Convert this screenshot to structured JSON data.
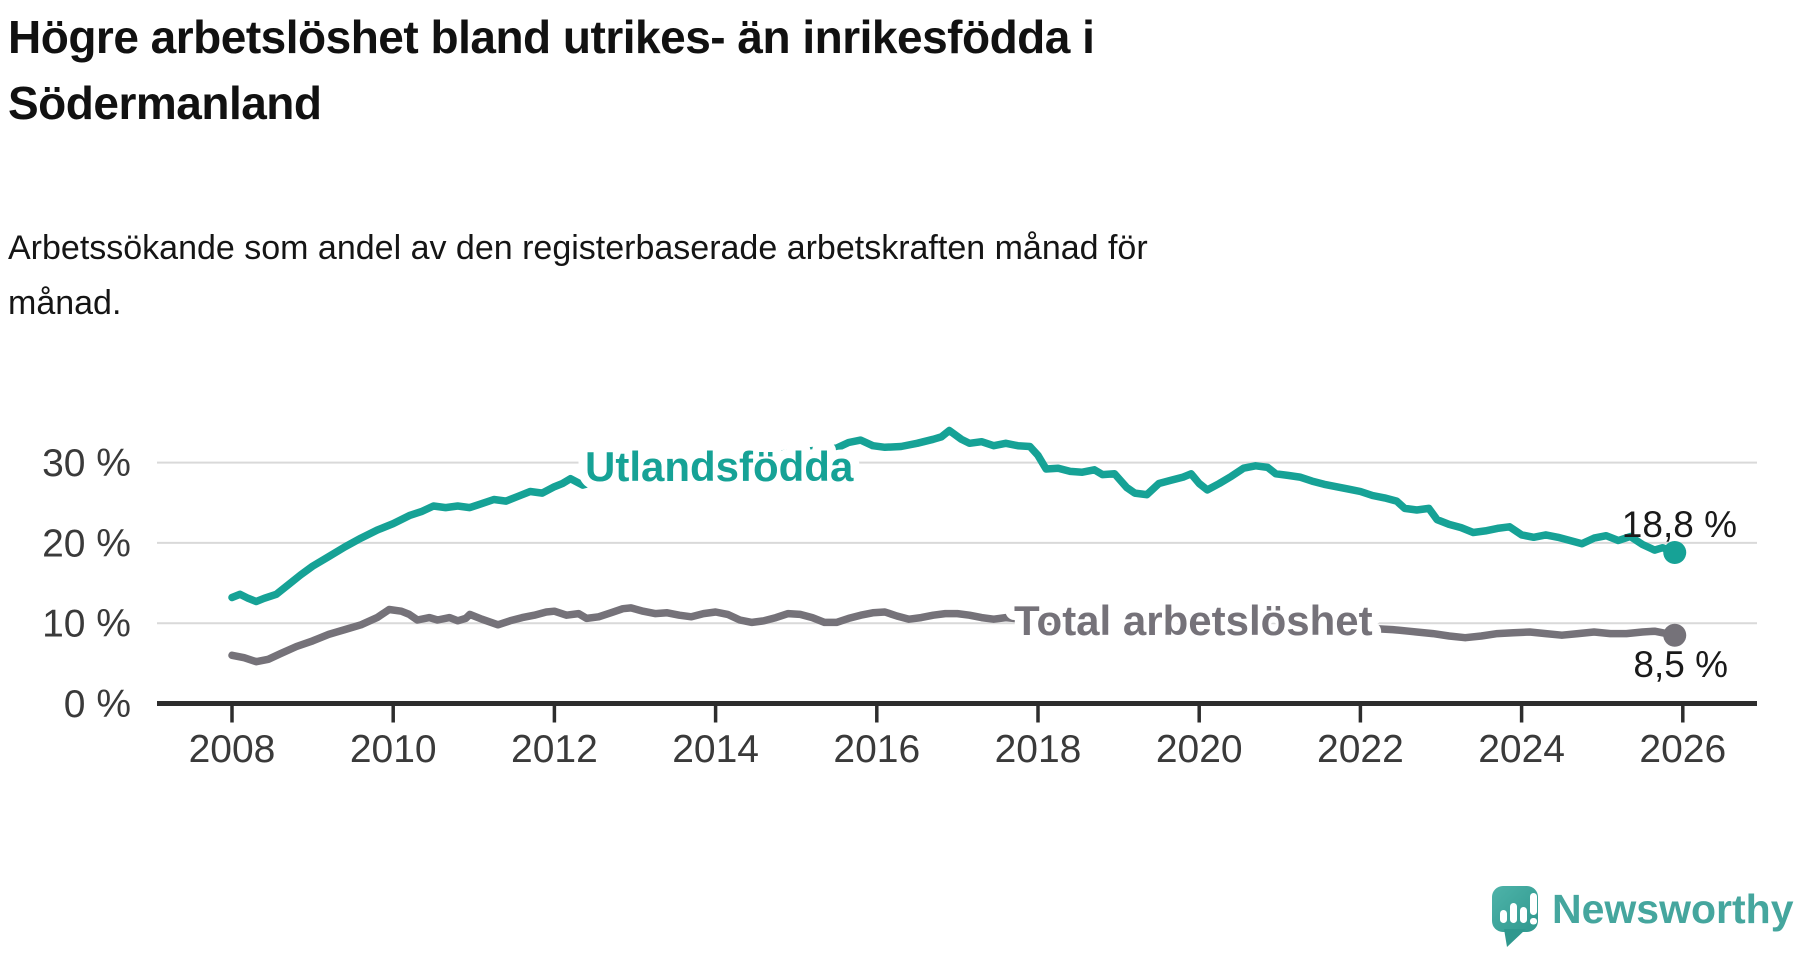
{
  "header": {
    "title_lines": [
      "Högre arbetslöshet bland utrikes- än inrikesfödda i",
      "Södermanland"
    ],
    "subtitle_lines": [
      "Arbetssökande som andel av den registerbaserade arbetskraften månad för",
      "månad."
    ]
  },
  "chart_data": {
    "type": "line",
    "title": "Högre arbetslöshet bland utrikes- än inrikesfödda i Södermanland",
    "subtitle": "Arbetssökande som andel av den registerbaserade arbetskraften månad för månad.",
    "x_axis": {
      "min": 2007.05,
      "max": 2026.9,
      "tick_values": [
        2008,
        2010,
        2012,
        2014,
        2016,
        2018,
        2020,
        2022,
        2024,
        2026
      ],
      "tick_labels": [
        "2008",
        "2010",
        "2012",
        "2014",
        "2016",
        "2018",
        "2020",
        "2022",
        "2024",
        "2026"
      ]
    },
    "y_axis": {
      "min": 0,
      "max": 35,
      "grid": true,
      "ticks": [
        {
          "value": 0,
          "label": "0 %"
        },
        {
          "value": 10,
          "label": "10 %"
        },
        {
          "value": 20,
          "label": "20 %"
        },
        {
          "value": 30,
          "label": "30 %"
        }
      ]
    },
    "legend_position": "inline-labels-on-lines",
    "colors": {
      "grid": "#d9d9d9",
      "axis": "#2d2d2d",
      "tick_text": "#3a3a3a",
      "value_label_text": "#1a1a1a"
    },
    "series": [
      {
        "name": "Utlandsfödda",
        "color": "#16a296",
        "end_label": "18,8 %",
        "end_value": 18.8,
        "points": [
          [
            2008.0,
            13.2
          ],
          [
            2008.1,
            13.6
          ],
          [
            2008.2,
            13.1
          ],
          [
            2008.3,
            12.7
          ],
          [
            2008.4,
            13.1
          ],
          [
            2008.55,
            13.6
          ],
          [
            2008.7,
            14.8
          ],
          [
            2008.85,
            16.0
          ],
          [
            2009.0,
            17.1
          ],
          [
            2009.2,
            18.3
          ],
          [
            2009.4,
            19.5
          ],
          [
            2009.6,
            20.6
          ],
          [
            2009.8,
            21.6
          ],
          [
            2010.0,
            22.4
          ],
          [
            2010.2,
            23.4
          ],
          [
            2010.35,
            23.9
          ],
          [
            2010.5,
            24.6
          ],
          [
            2010.65,
            24.4
          ],
          [
            2010.8,
            24.6
          ],
          [
            2010.95,
            24.4
          ],
          [
            2011.1,
            24.9
          ],
          [
            2011.25,
            25.4
          ],
          [
            2011.4,
            25.2
          ],
          [
            2011.55,
            25.8
          ],
          [
            2011.7,
            26.4
          ],
          [
            2011.85,
            26.2
          ],
          [
            2012.0,
            27.0
          ],
          [
            2012.1,
            27.4
          ],
          [
            2012.2,
            28.0
          ],
          [
            2012.35,
            27.2
          ],
          [
            2012.5,
            27.6
          ],
          [
            2012.7,
            27.9
          ],
          [
            2012.9,
            28.3
          ],
          [
            2013.1,
            28.7
          ],
          [
            2013.3,
            29.0
          ],
          [
            2013.5,
            29.4
          ],
          [
            2013.7,
            29.7
          ],
          [
            2013.9,
            30.0
          ],
          [
            2014.1,
            30.3
          ],
          [
            2014.3,
            30.5
          ],
          [
            2014.5,
            30.7
          ],
          [
            2014.7,
            30.9
          ],
          [
            2014.9,
            31.2
          ],
          [
            2015.1,
            31.4
          ],
          [
            2015.3,
            31.6
          ],
          [
            2015.5,
            31.8
          ],
          [
            2015.65,
            32.5
          ],
          [
            2015.8,
            32.8
          ],
          [
            2015.95,
            32.1
          ],
          [
            2016.1,
            31.9
          ],
          [
            2016.3,
            32.0
          ],
          [
            2016.5,
            32.4
          ],
          [
            2016.7,
            32.9
          ],
          [
            2016.8,
            33.2
          ],
          [
            2016.9,
            34.0
          ],
          [
            2017.05,
            32.9
          ],
          [
            2017.15,
            32.4
          ],
          [
            2017.3,
            32.6
          ],
          [
            2017.45,
            32.1
          ],
          [
            2017.6,
            32.4
          ],
          [
            2017.75,
            32.1
          ],
          [
            2017.9,
            32.0
          ],
          [
            2018.0,
            30.9
          ],
          [
            2018.1,
            29.2
          ],
          [
            2018.25,
            29.3
          ],
          [
            2018.4,
            28.9
          ],
          [
            2018.55,
            28.8
          ],
          [
            2018.7,
            29.1
          ],
          [
            2018.8,
            28.5
          ],
          [
            2018.95,
            28.6
          ],
          [
            2019.1,
            26.9
          ],
          [
            2019.2,
            26.2
          ],
          [
            2019.35,
            26.0
          ],
          [
            2019.5,
            27.4
          ],
          [
            2019.65,
            27.8
          ],
          [
            2019.8,
            28.2
          ],
          [
            2019.9,
            28.6
          ],
          [
            2020.0,
            27.4
          ],
          [
            2020.1,
            26.6
          ],
          [
            2020.25,
            27.4
          ],
          [
            2020.4,
            28.3
          ],
          [
            2020.55,
            29.3
          ],
          [
            2020.7,
            29.6
          ],
          [
            2020.85,
            29.4
          ],
          [
            2020.95,
            28.6
          ],
          [
            2021.1,
            28.4
          ],
          [
            2021.25,
            28.2
          ],
          [
            2021.4,
            27.7
          ],
          [
            2021.55,
            27.3
          ],
          [
            2021.7,
            27.0
          ],
          [
            2021.85,
            26.7
          ],
          [
            2022.0,
            26.4
          ],
          [
            2022.15,
            25.9
          ],
          [
            2022.3,
            25.6
          ],
          [
            2022.45,
            25.2
          ],
          [
            2022.55,
            24.3
          ],
          [
            2022.7,
            24.1
          ],
          [
            2022.85,
            24.3
          ],
          [
            2022.95,
            22.9
          ],
          [
            2023.1,
            22.3
          ],
          [
            2023.25,
            21.9
          ],
          [
            2023.4,
            21.3
          ],
          [
            2023.55,
            21.5
          ],
          [
            2023.7,
            21.8
          ],
          [
            2023.85,
            22.0
          ],
          [
            2024.0,
            21.0
          ],
          [
            2024.15,
            20.7
          ],
          [
            2024.3,
            21.0
          ],
          [
            2024.45,
            20.7
          ],
          [
            2024.6,
            20.3
          ],
          [
            2024.75,
            19.9
          ],
          [
            2024.9,
            20.6
          ],
          [
            2025.05,
            20.9
          ],
          [
            2025.2,
            20.3
          ],
          [
            2025.35,
            20.8
          ],
          [
            2025.5,
            19.8
          ],
          [
            2025.65,
            19.1
          ],
          [
            2025.75,
            19.4
          ],
          [
            2025.9,
            18.8
          ]
        ]
      },
      {
        "name": "Total arbetslöshet",
        "color": "#757279",
        "end_label": "8,5 %",
        "end_value": 8.5,
        "points": [
          [
            2008.0,
            6.0
          ],
          [
            2008.15,
            5.7
          ],
          [
            2008.3,
            5.2
          ],
          [
            2008.45,
            5.5
          ],
          [
            2008.6,
            6.2
          ],
          [
            2008.8,
            7.1
          ],
          [
            2009.0,
            7.8
          ],
          [
            2009.2,
            8.6
          ],
          [
            2009.4,
            9.2
          ],
          [
            2009.6,
            9.8
          ],
          [
            2009.8,
            10.7
          ],
          [
            2009.95,
            11.7
          ],
          [
            2010.1,
            11.5
          ],
          [
            2010.2,
            11.1
          ],
          [
            2010.3,
            10.4
          ],
          [
            2010.45,
            10.7
          ],
          [
            2010.55,
            10.4
          ],
          [
            2010.7,
            10.7
          ],
          [
            2010.8,
            10.3
          ],
          [
            2010.9,
            10.6
          ],
          [
            2010.95,
            11.1
          ],
          [
            2011.1,
            10.5
          ],
          [
            2011.3,
            9.8
          ],
          [
            2011.45,
            10.3
          ],
          [
            2011.6,
            10.7
          ],
          [
            2011.75,
            11.0
          ],
          [
            2011.9,
            11.4
          ],
          [
            2012.0,
            11.5
          ],
          [
            2012.15,
            11.0
          ],
          [
            2012.3,
            11.2
          ],
          [
            2012.4,
            10.6
          ],
          [
            2012.55,
            10.8
          ],
          [
            2012.7,
            11.3
          ],
          [
            2012.85,
            11.8
          ],
          [
            2012.95,
            11.9
          ],
          [
            2013.1,
            11.5
          ],
          [
            2013.25,
            11.2
          ],
          [
            2013.4,
            11.3
          ],
          [
            2013.55,
            11.0
          ],
          [
            2013.7,
            10.8
          ],
          [
            2013.85,
            11.2
          ],
          [
            2014.0,
            11.4
          ],
          [
            2014.15,
            11.1
          ],
          [
            2014.3,
            10.4
          ],
          [
            2014.45,
            10.1
          ],
          [
            2014.6,
            10.3
          ],
          [
            2014.75,
            10.7
          ],
          [
            2014.9,
            11.2
          ],
          [
            2015.05,
            11.1
          ],
          [
            2015.2,
            10.7
          ],
          [
            2015.35,
            10.1
          ],
          [
            2015.5,
            10.1
          ],
          [
            2015.65,
            10.6
          ],
          [
            2015.8,
            11.0
          ],
          [
            2015.95,
            11.3
          ],
          [
            2016.1,
            11.4
          ],
          [
            2016.25,
            10.9
          ],
          [
            2016.4,
            10.5
          ],
          [
            2016.55,
            10.7
          ],
          [
            2016.7,
            11.0
          ],
          [
            2016.85,
            11.2
          ],
          [
            2017.0,
            11.2
          ],
          [
            2017.15,
            11.0
          ],
          [
            2017.3,
            10.7
          ],
          [
            2017.45,
            10.5
          ],
          [
            2017.6,
            10.7
          ],
          [
            2017.8,
            10.5
          ],
          [
            2018.0,
            10.4
          ],
          [
            2018.3,
            10.0
          ],
          [
            2018.6,
            9.7
          ],
          [
            2018.9,
            9.5
          ],
          [
            2019.2,
            9.2
          ],
          [
            2019.5,
            9.1
          ],
          [
            2019.8,
            9.3
          ],
          [
            2020.1,
            9.8
          ],
          [
            2020.4,
            10.4
          ],
          [
            2020.7,
            10.7
          ],
          [
            2021.0,
            10.5
          ],
          [
            2021.3,
            10.1
          ],
          [
            2021.6,
            9.8
          ],
          [
            2021.9,
            9.5
          ],
          [
            2022.2,
            9.3
          ],
          [
            2022.4,
            9.2
          ],
          [
            2022.6,
            9.0
          ],
          [
            2022.9,
            8.7
          ],
          [
            2023.1,
            8.4
          ],
          [
            2023.3,
            8.2
          ],
          [
            2023.5,
            8.4
          ],
          [
            2023.7,
            8.7
          ],
          [
            2023.9,
            8.8
          ],
          [
            2024.1,
            8.9
          ],
          [
            2024.3,
            8.7
          ],
          [
            2024.5,
            8.5
          ],
          [
            2024.7,
            8.7
          ],
          [
            2024.9,
            8.9
          ],
          [
            2025.1,
            8.7
          ],
          [
            2025.3,
            8.7
          ],
          [
            2025.5,
            8.9
          ],
          [
            2025.65,
            9.0
          ],
          [
            2025.9,
            8.5
          ]
        ]
      }
    ]
  },
  "branding": {
    "name": "Newsworthy",
    "icon": "newsworthy-speech-bubble-bar-chart-icon",
    "text_color": "#45a69e",
    "icon_color": "#3aa79d"
  }
}
